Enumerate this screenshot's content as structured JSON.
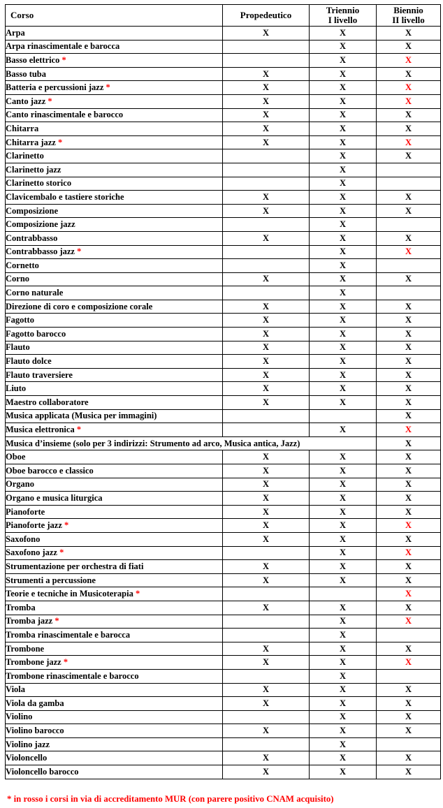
{
  "colors": {
    "text": "#000000",
    "red_accent": "#ff0000",
    "border": "#000000",
    "background": "#ffffff"
  },
  "table": {
    "mark_symbol": "X",
    "star_symbol": "*",
    "columns": [
      {
        "id": "corso",
        "lines": [
          "Corso"
        ]
      },
      {
        "id": "propedeutico",
        "lines": [
          "Propedeutico"
        ]
      },
      {
        "id": "triennio",
        "lines": [
          "Triennio",
          "I livello"
        ]
      },
      {
        "id": "biennio",
        "lines": [
          "Biennio",
          "II livello"
        ]
      }
    ],
    "rows": [
      {
        "corso": "Arpa",
        "star": false,
        "marks": [
          "X",
          "X",
          "X"
        ],
        "red": []
      },
      {
        "corso": "Arpa rinascimentale e barocca",
        "star": false,
        "marks": [
          "",
          "X",
          "X"
        ],
        "red": []
      },
      {
        "corso": "Basso elettrico",
        "star": true,
        "marks": [
          "",
          "X",
          "X"
        ],
        "red": [
          2
        ]
      },
      {
        "corso": "Basso tuba",
        "star": false,
        "marks": [
          "X",
          "X",
          "X"
        ],
        "red": []
      },
      {
        "corso": "Batteria e percussioni jazz",
        "star": true,
        "marks": [
          "X",
          "X",
          "X"
        ],
        "red": [
          2
        ]
      },
      {
        "corso": "Canto jazz",
        "star": true,
        "marks": [
          "X",
          "X",
          "X"
        ],
        "red": [
          2
        ]
      },
      {
        "corso": "Canto rinascimentale e barocco",
        "star": false,
        "marks": [
          "X",
          "X",
          "X"
        ],
        "red": []
      },
      {
        "corso": "Chitarra",
        "star": false,
        "marks": [
          "X",
          "X",
          "X"
        ],
        "red": []
      },
      {
        "corso": "Chitarra jazz",
        "star": true,
        "marks": [
          "X",
          "X",
          "X"
        ],
        "red": [
          2
        ]
      },
      {
        "corso": "Clarinetto",
        "star": false,
        "marks": [
          "",
          "X",
          "X"
        ],
        "red": []
      },
      {
        "corso": "Clarinetto jazz",
        "star": false,
        "marks": [
          "",
          "X",
          ""
        ],
        "red": []
      },
      {
        "corso": "Clarinetto storico",
        "star": false,
        "marks": [
          "",
          "X",
          ""
        ],
        "red": []
      },
      {
        "corso": "Clavicembalo e tastiere storiche",
        "star": false,
        "marks": [
          "X",
          "X",
          "X"
        ],
        "red": []
      },
      {
        "corso": "Composizione",
        "star": false,
        "marks": [
          "X",
          "X",
          "X"
        ],
        "red": []
      },
      {
        "corso": "Composizione jazz",
        "star": false,
        "marks": [
          "",
          "X",
          ""
        ],
        "red": []
      },
      {
        "corso": "Contrabbasso",
        "star": false,
        "marks": [
          "X",
          "X",
          "X"
        ],
        "red": []
      },
      {
        "corso": "Contrabbasso jazz",
        "star": true,
        "marks": [
          "",
          "X",
          "X"
        ],
        "red": [
          2
        ]
      },
      {
        "corso": "Cornetto",
        "star": false,
        "marks": [
          "",
          "X",
          ""
        ],
        "red": []
      },
      {
        "corso": "Corno",
        "star": false,
        "marks": [
          "X",
          "X",
          "X"
        ],
        "red": []
      },
      {
        "corso": "Corno naturale",
        "star": false,
        "marks": [
          "",
          "X",
          ""
        ],
        "red": []
      },
      {
        "corso": "Direzione di coro e composizione corale",
        "star": false,
        "marks": [
          "X",
          "X",
          "X"
        ],
        "red": []
      },
      {
        "corso": "Fagotto",
        "star": false,
        "marks": [
          "X",
          "X",
          "X"
        ],
        "red": []
      },
      {
        "corso": "Fagotto barocco",
        "star": false,
        "marks": [
          "X",
          "X",
          "X"
        ],
        "red": []
      },
      {
        "corso": "Flauto",
        "star": false,
        "marks": [
          "X",
          "X",
          "X"
        ],
        "red": []
      },
      {
        "corso": "Flauto dolce",
        "star": false,
        "marks": [
          "X",
          "X",
          "X"
        ],
        "red": []
      },
      {
        "corso": "Flauto traversiere",
        "star": false,
        "marks": [
          "X",
          "X",
          "X"
        ],
        "red": []
      },
      {
        "corso": "Liuto",
        "star": false,
        "marks": [
          "X",
          "X",
          "X"
        ],
        "red": []
      },
      {
        "corso": "Maestro collaboratore",
        "star": false,
        "marks": [
          "X",
          "X",
          "X"
        ],
        "red": []
      },
      {
        "corso": "Musica applicata (Musica per immagini)",
        "star": false,
        "marks": [
          "",
          "",
          "X"
        ],
        "red": []
      },
      {
        "corso": "Musica elettronica",
        "star": true,
        "marks": [
          "",
          "X",
          "X"
        ],
        "red": [
          2
        ]
      },
      {
        "corso": "Musica d’insieme (solo per 3 indirizzi: Strumento ad arco, Musica antica, Jazz)",
        "star": false,
        "span": 3,
        "marks": [
          "X"
        ],
        "red": []
      },
      {
        "corso": "Oboe",
        "star": false,
        "marks": [
          "X",
          "X",
          "X"
        ],
        "red": []
      },
      {
        "corso": "Oboe barocco e classico",
        "star": false,
        "marks": [
          "X",
          "X",
          "X"
        ],
        "red": []
      },
      {
        "corso": "Organo",
        "star": false,
        "marks": [
          "X",
          "X",
          "X"
        ],
        "red": []
      },
      {
        "corso": "Organo e musica liturgica",
        "star": false,
        "marks": [
          "X",
          "X",
          "X"
        ],
        "red": []
      },
      {
        "corso": "Pianoforte",
        "star": false,
        "marks": [
          "X",
          "X",
          "X"
        ],
        "red": []
      },
      {
        "corso": "Pianoforte jazz",
        "star": true,
        "marks": [
          "X",
          "X",
          "X"
        ],
        "red": [
          2
        ]
      },
      {
        "corso": "Saxofono",
        "star": false,
        "marks": [
          "X",
          "X",
          "X"
        ],
        "red": []
      },
      {
        "corso": "Saxofono jazz",
        "star": true,
        "marks": [
          "",
          "X",
          "X"
        ],
        "red": [
          2
        ]
      },
      {
        "corso": "Strumentazione per orchestra di fiati",
        "star": false,
        "marks": [
          "X",
          "X",
          "X"
        ],
        "red": []
      },
      {
        "corso": "Strumenti a percussione",
        "star": false,
        "marks": [
          "X",
          "X",
          "X"
        ],
        "red": []
      },
      {
        "corso": "Teorie e tecniche in Musicoterapia",
        "star": true,
        "marks": [
          "",
          "",
          "X"
        ],
        "red": [
          2
        ]
      },
      {
        "corso": "Tromba",
        "star": false,
        "marks": [
          "X",
          "X",
          "X"
        ],
        "red": []
      },
      {
        "corso": "Tromba jazz",
        "star": true,
        "marks": [
          "",
          "X",
          "X"
        ],
        "red": [
          2
        ]
      },
      {
        "corso": "Tromba rinascimentale e barocca",
        "star": false,
        "marks": [
          "",
          "X",
          ""
        ],
        "red": []
      },
      {
        "corso": "Trombone",
        "star": false,
        "marks": [
          "X",
          "X",
          "X"
        ],
        "red": []
      },
      {
        "corso": "Trombone jazz",
        "star": true,
        "marks": [
          "X",
          "X",
          "X"
        ],
        "red": [
          2
        ]
      },
      {
        "corso": "Trombone rinascimentale e barocco",
        "star": false,
        "marks": [
          "",
          "X",
          ""
        ],
        "red": []
      },
      {
        "corso": "Viola",
        "star": false,
        "marks": [
          "X",
          "X",
          "X"
        ],
        "red": []
      },
      {
        "corso": "Viola da gamba",
        "star": false,
        "marks": [
          "X",
          "X",
          "X"
        ],
        "red": []
      },
      {
        "corso": "Violino",
        "star": false,
        "marks": [
          "",
          "X",
          "X"
        ],
        "red": []
      },
      {
        "corso": "Violino barocco",
        "star": false,
        "marks": [
          "X",
          "X",
          "X"
        ],
        "red": []
      },
      {
        "corso": "Violino jazz",
        "star": false,
        "marks": [
          "",
          "X",
          ""
        ],
        "red": []
      },
      {
        "corso": "Violoncello",
        "star": false,
        "marks": [
          "X",
          "X",
          "X"
        ],
        "red": []
      },
      {
        "corso": "Violoncello barocco",
        "star": false,
        "marks": [
          "X",
          "X",
          "X"
        ],
        "red": []
      }
    ]
  },
  "footnote": {
    "text": "* in rosso i corsi in via di accreditamento MUR (con parere positivo CNAM acquisito)"
  }
}
